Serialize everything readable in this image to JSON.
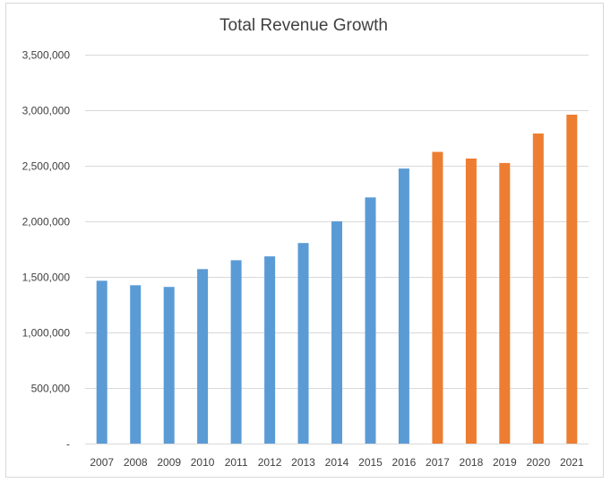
{
  "chart_data": {
    "type": "bar",
    "title": "Total Revenue Growth",
    "xlabel": "",
    "ylabel": "",
    "ylim": [
      0,
      3500000
    ],
    "y_ticks": [
      0,
      500000,
      1000000,
      1500000,
      2000000,
      2500000,
      3000000,
      3500000
    ],
    "y_tick_labels": [
      "-",
      "500,000",
      "1,000,000",
      "1,500,000",
      "2,000,000",
      "2,500,000",
      "3,000,000",
      "3,500,000"
    ],
    "grid": true,
    "legend": "none",
    "categories": [
      "2007",
      "2008",
      "2009",
      "2010",
      "2011",
      "2012",
      "2013",
      "2014",
      "2015",
      "2016",
      "2017",
      "2018",
      "2019",
      "2020",
      "2021"
    ],
    "values": [
      1465000,
      1425000,
      1410000,
      1570000,
      1650000,
      1685000,
      1805000,
      2000000,
      2215000,
      2475000,
      2625000,
      2565000,
      2525000,
      2790000,
      2960000
    ],
    "series_colors": {
      "historical": "#5b9bd5",
      "projected": "#ed7d31"
    },
    "bar_groups": [
      "historical",
      "historical",
      "historical",
      "historical",
      "historical",
      "historical",
      "historical",
      "historical",
      "historical",
      "historical",
      "projected",
      "projected",
      "projected",
      "projected",
      "projected"
    ]
  }
}
